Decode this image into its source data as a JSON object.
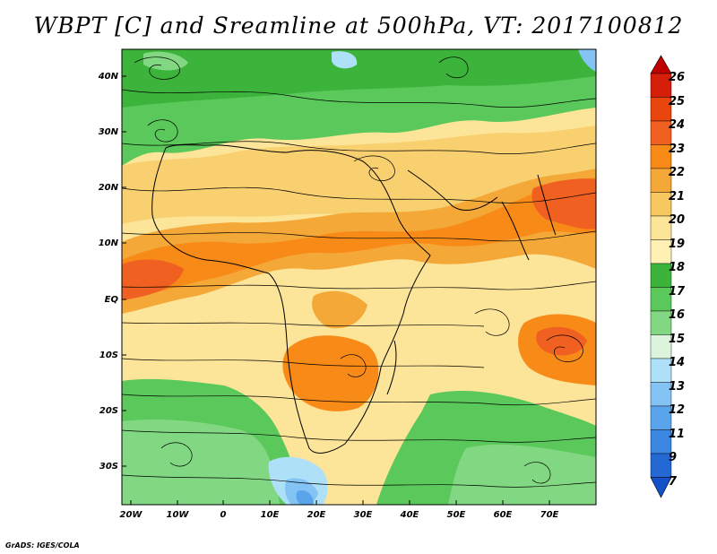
{
  "title": "WBPT [C] and Sreamline at 500hPa, VT: 2017100812",
  "credit": "GrADS: IGES/COLA",
  "map": {
    "lat_labels": [
      "40N",
      "30N",
      "20N",
      "10N",
      "EQ",
      "10S",
      "20S",
      "30S"
    ],
    "lon_labels": [
      "20W",
      "10W",
      "0",
      "10E",
      "20E",
      "30E",
      "40E",
      "50E",
      "60E",
      "70E"
    ]
  },
  "colorbar": {
    "labels": [
      "26",
      "25",
      "24",
      "23",
      "22",
      "21",
      "20",
      "19",
      "18",
      "17",
      "16",
      "15",
      "14",
      "13",
      "12",
      "11",
      "9",
      "7"
    ],
    "colors": [
      "#c00000",
      "#d41e0a",
      "#e8460e",
      "#f06020",
      "#f88a18",
      "#f4a838",
      "#f8c860",
      "#fce498",
      "#3cb43c",
      "#5ac85a",
      "#82d882",
      "#dcf4dc",
      "#aee0f8",
      "#84c4f4",
      "#5aa4ec",
      "#3a86e0",
      "#2468d4",
      "#1450c8"
    ]
  },
  "fields": {
    "colors": {
      "green_dark": "#3cb43c",
      "green": "#5ac85a",
      "green_light": "#82d882",
      "tan": "#fce498",
      "yellow": "#f8c860",
      "orange_light": "#f4a838",
      "orange": "#f88a18",
      "orange_red": "#f06020",
      "blue_light": "#aee0f8",
      "blue": "#84c4f4",
      "blue_mid": "#5aa4ec"
    }
  }
}
